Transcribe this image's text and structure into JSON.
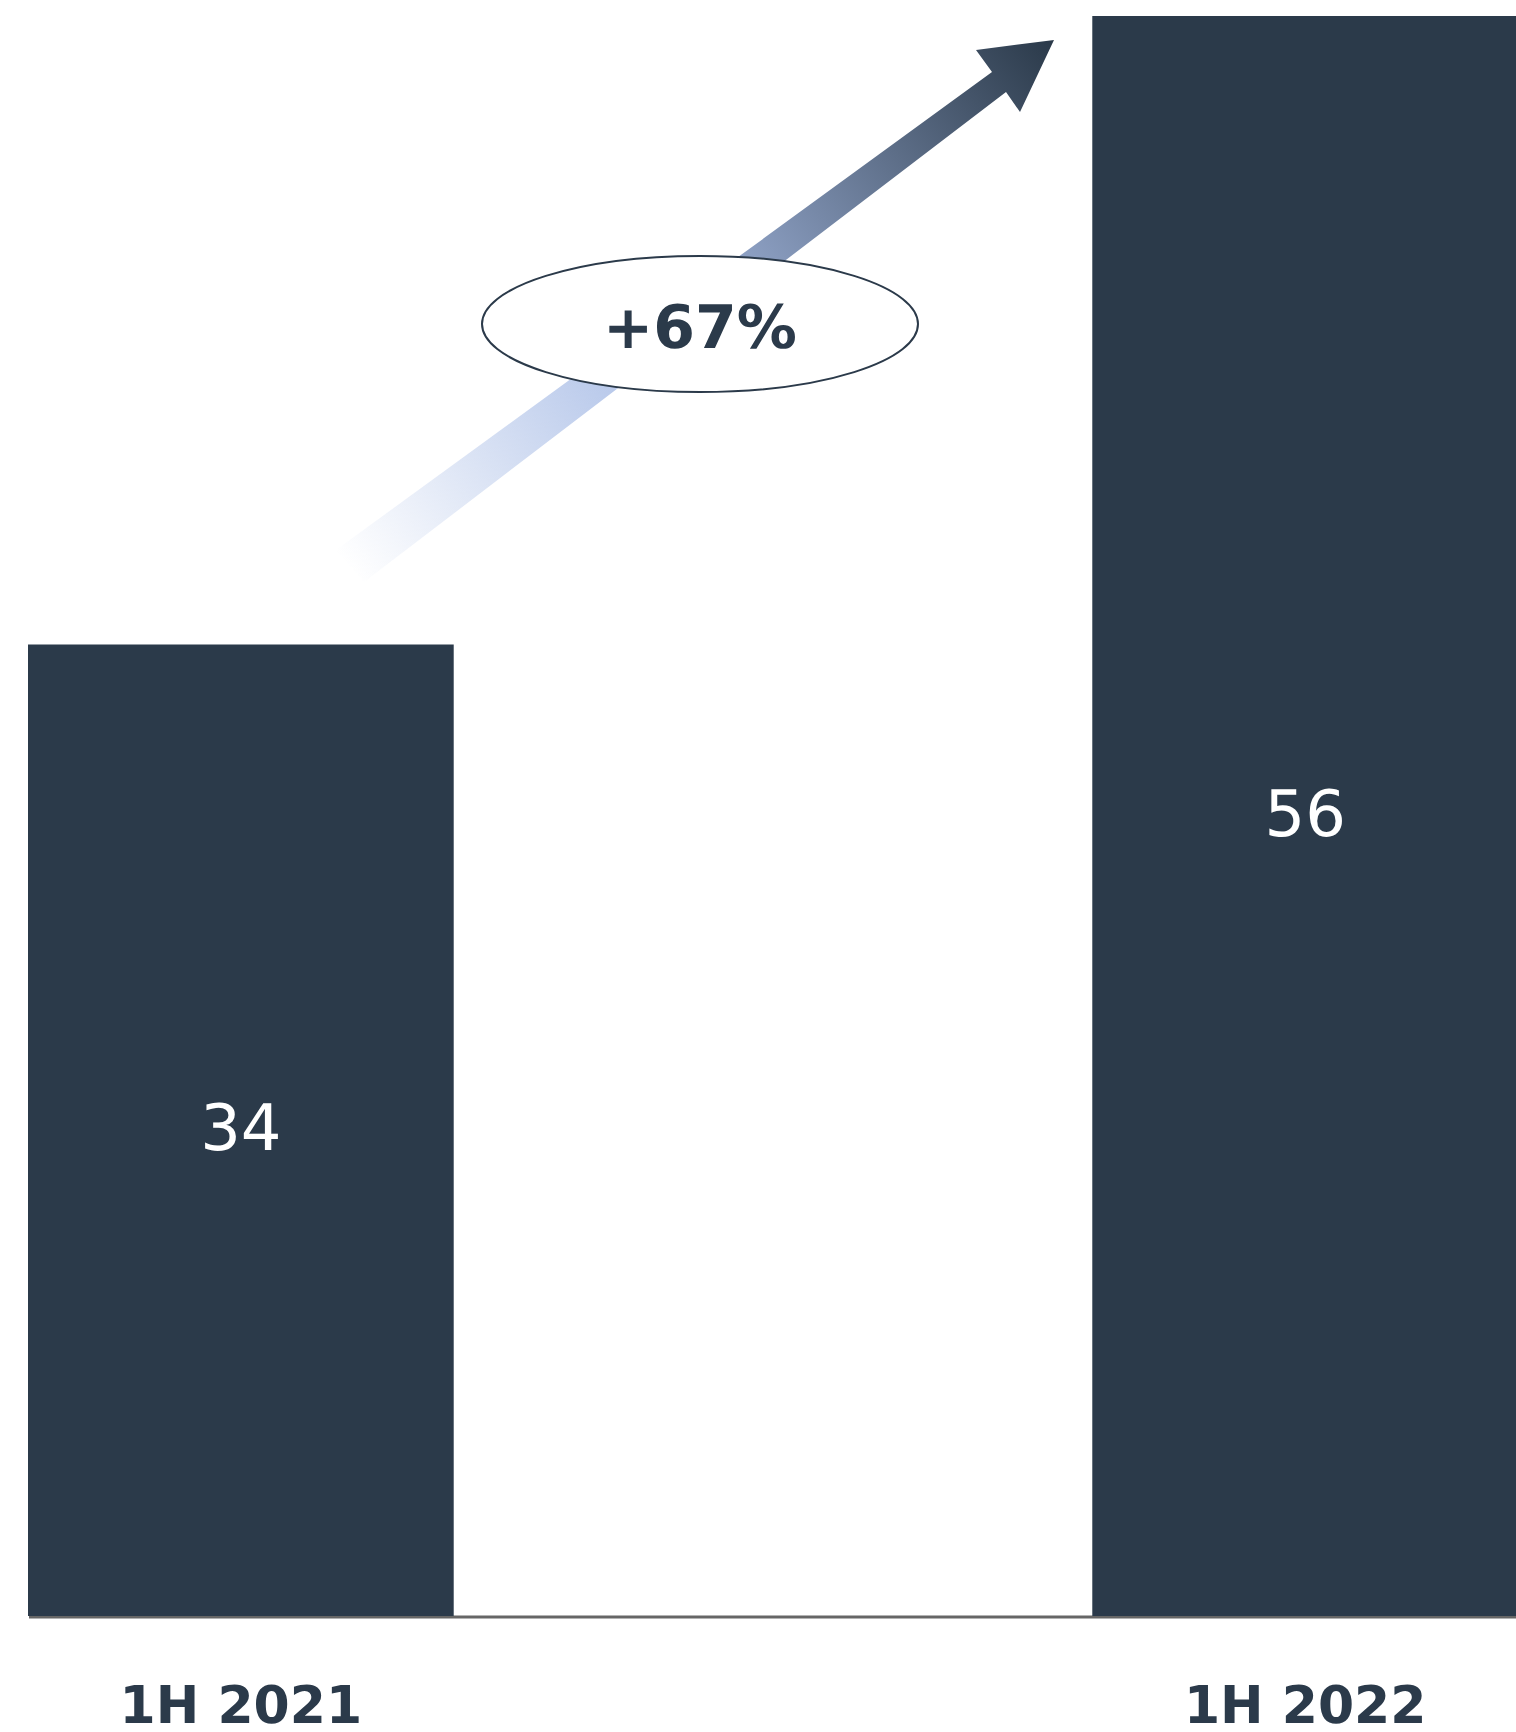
{
  "chart_data": {
    "type": "bar",
    "categories": [
      "1H 2021",
      "1H 2022"
    ],
    "values": [
      34,
      56
    ],
    "color": "#2b3a4a",
    "relative": false,
    "data_labels": true,
    "annotations": [
      "+67%"
    ]
  }
}
